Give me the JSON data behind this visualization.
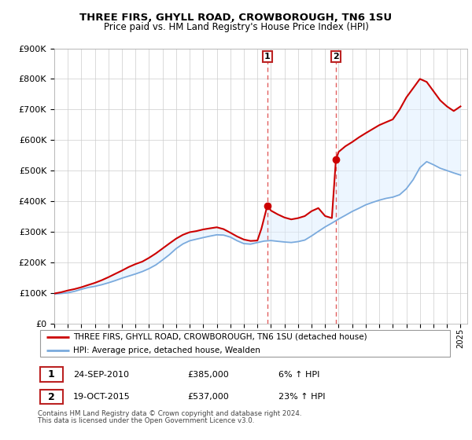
{
  "title": "THREE FIRS, GHYLL ROAD, CROWBOROUGH, TN6 1SU",
  "subtitle": "Price paid vs. HM Land Registry's House Price Index (HPI)",
  "legend_line1": "THREE FIRS, GHYLL ROAD, CROWBOROUGH, TN6 1SU (detached house)",
  "legend_line2": "HPI: Average price, detached house, Wealden",
  "footnote1": "Contains HM Land Registry data © Crown copyright and database right 2024.",
  "footnote2": "This data is licensed under the Open Government Licence v3.0.",
  "sale1_label": "1",
  "sale1_date": "24-SEP-2010",
  "sale1_price": "£385,000",
  "sale1_hpi": "6% ↑ HPI",
  "sale1_year": 2010.73,
  "sale1_value": 385000,
  "sale2_label": "2",
  "sale2_date": "19-OCT-2015",
  "sale2_price": "£537,000",
  "sale2_hpi": "23% ↑ HPI",
  "sale2_year": 2015.8,
  "sale2_value": 537000,
  "red_color": "#cc0000",
  "blue_color": "#7aaadd",
  "shade_color": "#ddeeff",
  "dashed_color": "#dd4444",
  "grid_color": "#cccccc",
  "ylim_max": 900000,
  "xlim_start": 1995.0,
  "xlim_end": 2025.5,
  "hpi_t": [
    1995.0,
    1995.5,
    1996.0,
    1996.5,
    1997.0,
    1997.5,
    1998.0,
    1998.5,
    1999.0,
    1999.5,
    2000.0,
    2000.5,
    2001.0,
    2001.5,
    2002.0,
    2002.5,
    2003.0,
    2003.5,
    2004.0,
    2004.5,
    2005.0,
    2005.5,
    2006.0,
    2006.5,
    2007.0,
    2007.5,
    2008.0,
    2008.5,
    2009.0,
    2009.5,
    2010.0,
    2010.5,
    2011.0,
    2011.5,
    2012.0,
    2012.5,
    2013.0,
    2013.5,
    2014.0,
    2014.5,
    2015.0,
    2015.5,
    2016.0,
    2016.5,
    2017.0,
    2017.5,
    2018.0,
    2018.5,
    2019.0,
    2019.5,
    2020.0,
    2020.5,
    2021.0,
    2021.5,
    2022.0,
    2022.5,
    2023.0,
    2023.5,
    2024.0,
    2024.5,
    2025.0
  ],
  "hpi_v": [
    95000,
    97000,
    100000,
    105000,
    112000,
    118000,
    122000,
    127000,
    133000,
    140000,
    148000,
    155000,
    162000,
    170000,
    180000,
    192000,
    208000,
    225000,
    245000,
    260000,
    270000,
    275000,
    280000,
    285000,
    290000,
    290000,
    284000,
    272000,
    262000,
    260000,
    265000,
    270000,
    272000,
    270000,
    268000,
    266000,
    268000,
    272000,
    285000,
    300000,
    315000,
    328000,
    342000,
    355000,
    368000,
    378000,
    388000,
    395000,
    402000,
    408000,
    412000,
    420000,
    440000,
    470000,
    510000,
    530000,
    520000,
    508000,
    500000,
    492000,
    485000
  ],
  "prop_t": [
    1995.0,
    1995.5,
    1996.0,
    1996.5,
    1997.0,
    1997.5,
    1998.0,
    1998.5,
    1999.0,
    1999.5,
    2000.0,
    2000.5,
    2001.0,
    2001.5,
    2002.0,
    2002.5,
    2003.0,
    2003.5,
    2004.0,
    2004.5,
    2005.0,
    2005.5,
    2006.0,
    2006.5,
    2007.0,
    2007.5,
    2008.0,
    2008.5,
    2009.0,
    2009.5,
    2010.0,
    2010.3,
    2010.73,
    2010.9,
    2011.0,
    2011.5,
    2012.0,
    2012.5,
    2013.0,
    2013.5,
    2014.0,
    2014.5,
    2015.0,
    2015.5,
    2015.8,
    2016.0,
    2016.5,
    2017.0,
    2017.5,
    2018.0,
    2018.5,
    2019.0,
    2019.5,
    2020.0,
    2020.5,
    2021.0,
    2021.5,
    2022.0,
    2022.5,
    2023.0,
    2023.5,
    2024.0,
    2024.5,
    2025.0
  ],
  "prop_v": [
    100000,
    103000,
    108000,
    113000,
    120000,
    128000,
    135000,
    143000,
    152000,
    162000,
    172000,
    183000,
    192000,
    200000,
    213000,
    228000,
    245000,
    262000,
    278000,
    290000,
    298000,
    302000,
    308000,
    312000,
    315000,
    308000,
    295000,
    282000,
    272000,
    268000,
    270000,
    310000,
    385000,
    375000,
    368000,
    355000,
    345000,
    340000,
    345000,
    352000,
    368000,
    378000,
    352000,
    345000,
    537000,
    560000,
    578000,
    592000,
    608000,
    622000,
    635000,
    648000,
    658000,
    668000,
    700000,
    740000,
    770000,
    800000,
    790000,
    760000,
    730000,
    710000,
    695000,
    710000
  ]
}
